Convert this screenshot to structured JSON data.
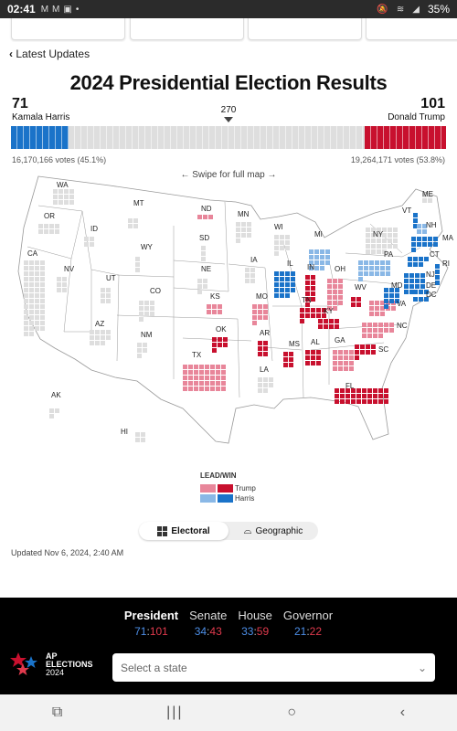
{
  "status_bar": {
    "time": "02:41",
    "battery": "35%"
  },
  "nav": {
    "latest_updates": "Latest Updates",
    "chevron_left": "‹"
  },
  "page_title": "2024 Presidential Election Results",
  "candidates": {
    "left": {
      "name": "Kamala Harris",
      "electoral_votes": 71,
      "votes_text": "16,170,166 votes (45.1%)",
      "color": "#1a73c9"
    },
    "right": {
      "name": "Donald Trump",
      "electoral_votes": 101,
      "votes_text": "19,264,171 votes (53.8%)",
      "color": "#c8102e"
    }
  },
  "threshold": "270",
  "total_electoral_votes": 538,
  "swipe_hint": "← Swipe for full map →",
  "states": [
    {
      "abbr": "WA",
      "status": "none"
    },
    {
      "abbr": "OR",
      "status": "none"
    },
    {
      "abbr": "CA",
      "status": "none"
    },
    {
      "abbr": "NV",
      "status": "none"
    },
    {
      "abbr": "ID",
      "status": "none"
    },
    {
      "abbr": "MT",
      "status": "none"
    },
    {
      "abbr": "WY",
      "status": "none"
    },
    {
      "abbr": "UT",
      "status": "none"
    },
    {
      "abbr": "CO",
      "status": "none"
    },
    {
      "abbr": "AZ",
      "status": "none"
    },
    {
      "abbr": "NM",
      "status": "none"
    },
    {
      "abbr": "ND",
      "status": "trump_lead"
    },
    {
      "abbr": "SD",
      "status": "none"
    },
    {
      "abbr": "NE",
      "status": "none"
    },
    {
      "abbr": "KS",
      "status": "trump_lead"
    },
    {
      "abbr": "OK",
      "status": "trump_win"
    },
    {
      "abbr": "TX",
      "status": "trump_lead"
    },
    {
      "abbr": "MN",
      "status": "none"
    },
    {
      "abbr": "IA",
      "status": "none"
    },
    {
      "abbr": "MO",
      "status": "trump_lead"
    },
    {
      "abbr": "AR",
      "status": "trump_win"
    },
    {
      "abbr": "LA",
      "status": "none"
    },
    {
      "abbr": "WI",
      "status": "none"
    },
    {
      "abbr": "IL",
      "status": "harris_win"
    },
    {
      "abbr": "MI",
      "status": "harris_lead"
    },
    {
      "abbr": "IN",
      "status": "trump_win"
    },
    {
      "abbr": "OH",
      "status": "trump_lead"
    },
    {
      "abbr": "KY",
      "status": "trump_win"
    },
    {
      "abbr": "TN",
      "status": "trump_win"
    },
    {
      "abbr": "MS",
      "status": "trump_win"
    },
    {
      "abbr": "AL",
      "status": "trump_win"
    },
    {
      "abbr": "GA",
      "status": "trump_lead"
    },
    {
      "abbr": "FL",
      "status": "trump_win"
    },
    {
      "abbr": "SC",
      "status": "trump_win"
    },
    {
      "abbr": "NC",
      "status": "trump_lead"
    },
    {
      "abbr": "VA",
      "status": "trump_lead"
    },
    {
      "abbr": "WV",
      "status": "trump_win"
    },
    {
      "abbr": "PA",
      "status": "harris_lead"
    },
    {
      "abbr": "NY",
      "status": "none"
    },
    {
      "abbr": "VT",
      "status": "harris_win"
    },
    {
      "abbr": "NH",
      "status": "harris_lead"
    },
    {
      "abbr": "ME",
      "status": "none"
    },
    {
      "abbr": "MA",
      "status": "harris_win"
    },
    {
      "abbr": "RI",
      "status": "harris_win"
    },
    {
      "abbr": "CT",
      "status": "harris_win"
    },
    {
      "abbr": "NJ",
      "status": "harris_win"
    },
    {
      "abbr": "DE",
      "status": "harris_win"
    },
    {
      "abbr": "MD",
      "status": "harris_win"
    },
    {
      "abbr": "DC",
      "status": "harris_win"
    },
    {
      "abbr": "AK",
      "status": "none"
    },
    {
      "abbr": "HI",
      "status": "none"
    }
  ],
  "legend": {
    "title": "LEAD/WIN",
    "trump_label": "Trump",
    "harris_label": "Harris",
    "trump_lead_color": "#e8869a",
    "trump_win_color": "#c8102e",
    "harris_lead_color": "#8ab8e6",
    "harris_win_color": "#1a73c9",
    "uncalled_color": "#dedede"
  },
  "view_toggle": {
    "electoral": "Electoral",
    "geographic": "Geographic",
    "selected": "Electoral"
  },
  "updated": "Updated Nov 6, 2024, 2:40 AM",
  "races": [
    {
      "name": "President",
      "dem": "71",
      "rep": "101",
      "active": true
    },
    {
      "name": "Senate",
      "dem": "34",
      "rep": "43",
      "active": false
    },
    {
      "name": "House",
      "dem": "33",
      "rep": "59",
      "active": false
    },
    {
      "name": "Governor",
      "dem": "21",
      "rep": "22",
      "active": false
    }
  ],
  "branding": {
    "line1": "AP",
    "line2": "ELECTIONS",
    "line3": "2024"
  },
  "state_select": {
    "placeholder": "Select a state"
  },
  "android_nav": {
    "recents": "⧉",
    "home": "○",
    "back": "‹"
  }
}
